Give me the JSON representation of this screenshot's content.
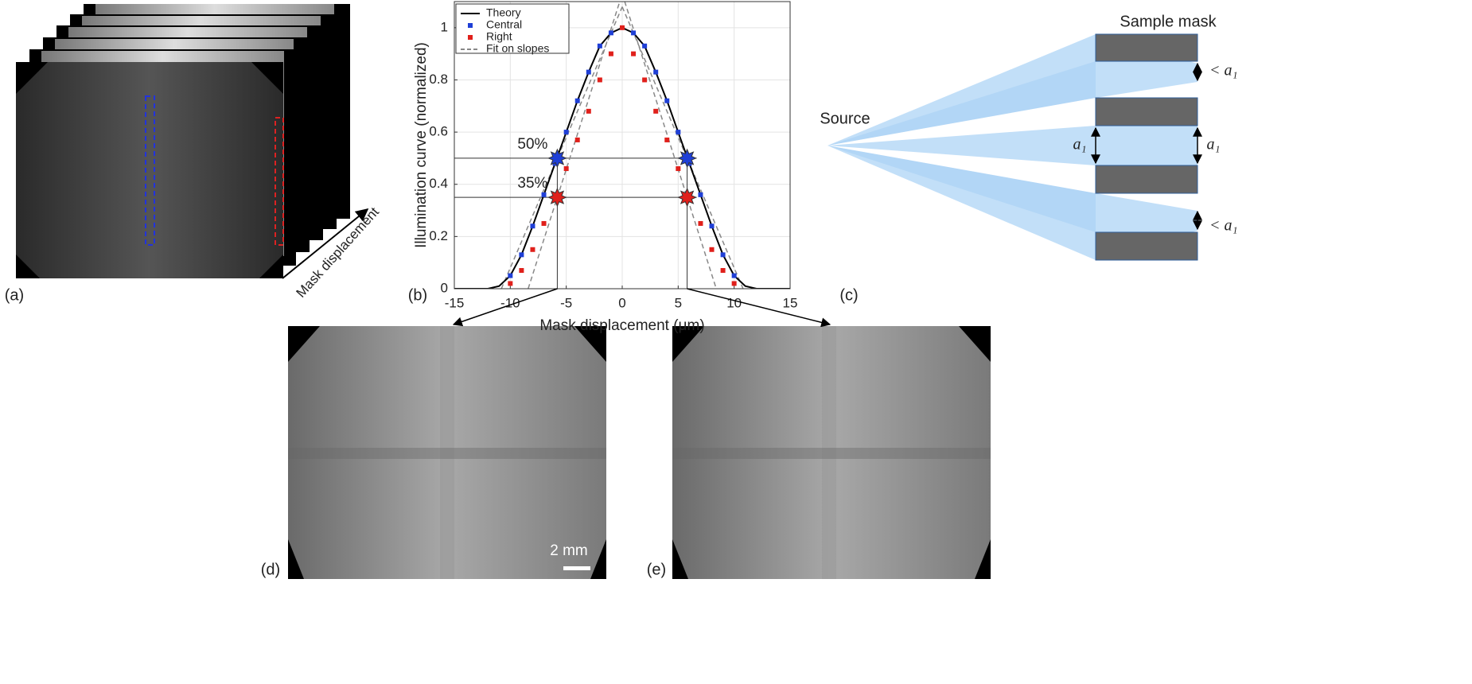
{
  "chart_data": {
    "type": "line",
    "xlabel": "Mask displacement (μm)",
    "ylabel": "Illumination curve (normalized)",
    "xlim": [
      -15,
      15
    ],
    "ylim": [
      0,
      1.1
    ],
    "xticks": [
      -15,
      -10,
      -5,
      0,
      5,
      10,
      15
    ],
    "yticks": [
      0,
      0.2,
      0.4,
      0.6,
      0.8,
      1
    ],
    "grid": true,
    "legend": "upper left",
    "series": [
      {
        "name": "Theory",
        "color": "#000000",
        "style": "line",
        "x": [
          -15,
          -14,
          -13,
          -12,
          -11,
          -10,
          -9,
          -8,
          -7,
          -6,
          -5,
          -4,
          -3,
          -2,
          -1,
          0,
          1,
          2,
          3,
          4,
          5,
          6,
          7,
          8,
          9,
          10,
          11,
          12,
          13,
          14,
          15
        ],
        "values": [
          0,
          0,
          0,
          0,
          0.01,
          0.05,
          0.13,
          0.24,
          0.36,
          0.48,
          0.6,
          0.72,
          0.83,
          0.93,
          0.98,
          1,
          0.98,
          0.93,
          0.83,
          0.72,
          0.6,
          0.48,
          0.36,
          0.24,
          0.13,
          0.05,
          0.01,
          0,
          0,
          0,
          0
        ]
      },
      {
        "name": "Central",
        "color": "#1f3fd6",
        "style": "marker",
        "x": [
          -10,
          -9,
          -8,
          -7,
          -6,
          -5,
          -4,
          -3,
          -2,
          -1,
          1,
          2,
          3,
          4,
          5,
          6,
          7,
          8,
          9,
          10
        ],
        "values": [
          0.05,
          0.13,
          0.24,
          0.36,
          0.48,
          0.6,
          0.72,
          0.83,
          0.93,
          0.98,
          0.98,
          0.93,
          0.83,
          0.72,
          0.6,
          0.48,
          0.36,
          0.24,
          0.13,
          0.05
        ]
      },
      {
        "name": "Right",
        "color": "#e0201b",
        "style": "marker",
        "x": [
          -10,
          -9,
          -8,
          -7,
          -6,
          -5,
          -4,
          -3,
          -2,
          -1,
          0,
          1,
          2,
          3,
          4,
          5,
          6,
          7,
          8,
          9,
          10
        ],
        "values": [
          0.02,
          0.07,
          0.15,
          0.25,
          0.34,
          0.46,
          0.57,
          0.68,
          0.8,
          0.9,
          1,
          0.9,
          0.8,
          0.68,
          0.57,
          0.46,
          0.34,
          0.25,
          0.15,
          0.07,
          0.02
        ]
      },
      {
        "name": "Fit on slopes",
        "color": "#888888",
        "style": "dashed",
        "x": [
          -10.8,
          0,
          0,
          0,
          10.8,
          0,
          -8.4,
          0,
          0,
          0,
          8.4
        ],
        "values": [
          0,
          1.08,
          null,
          1.08,
          0,
          null,
          0,
          1.13,
          null,
          1.13,
          0
        ]
      }
    ],
    "levels": [
      {
        "value": 0.5,
        "label": "50%",
        "color": "#1f3fd6"
      },
      {
        "value": 0.35,
        "label": "35%",
        "color": "#e0201b"
      }
    ],
    "level_x": [
      -5.8,
      5.8
    ]
  },
  "panels": {
    "labels": [
      "(a)",
      "(b)",
      "(c)",
      "(d)",
      "(e)"
    ],
    "stack_arrow": "Mask displacement",
    "source": "Source",
    "mask": "Sample mask",
    "gap": "a₁",
    "narrow_gap": "< a₁",
    "scale_bar": "2 mm"
  }
}
